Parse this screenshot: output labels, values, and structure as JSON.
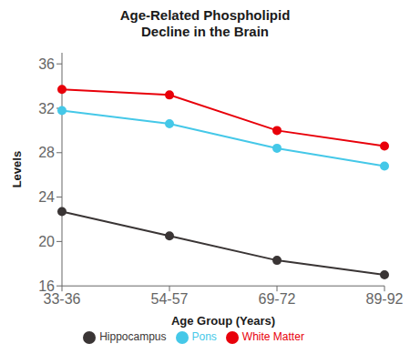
{
  "chart_data": {
    "type": "line",
    "title": "Age-Related Phospholipid\nDecline in the Brain",
    "xlabel": "Age Group (Years)",
    "ylabel": "Levels",
    "categories": [
      "33-36",
      "54-57",
      "69-72",
      "89-92"
    ],
    "series": [
      {
        "name": "White Matter",
        "color": "#e8000a",
        "marker": "circle",
        "values": [
          33.7,
          33.2,
          30.0,
          28.6
        ]
      },
      {
        "name": "Hippocampus",
        "color": "#3a3535",
        "marker": "circle",
        "values": [
          22.7,
          20.5,
          18.3,
          17.0
        ]
      },
      {
        "name": "Pons",
        "color": "#45c8e8",
        "marker": "circle",
        "values": [
          31.8,
          30.6,
          28.4,
          26.8
        ]
      }
    ],
    "ylim": [
      16,
      37
    ],
    "yticks": [
      16,
      20,
      24,
      28,
      32,
      36
    ],
    "grid": false,
    "legend": "bottom"
  }
}
